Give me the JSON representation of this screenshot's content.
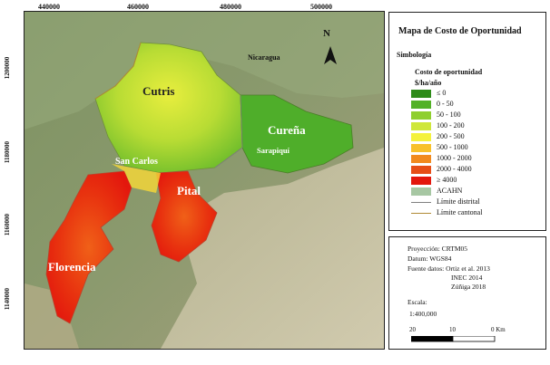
{
  "map": {
    "x_ticks": [
      "440000",
      "460000",
      "480000",
      "500000"
    ],
    "y_ticks": [
      "1200000",
      "1180000",
      "1160000",
      "1140000"
    ],
    "north_label": "N",
    "places": {
      "nicaragua": "Nicaragua",
      "cutris": "Cutris",
      "curena": "Cureña",
      "sarapiqui": "Sarapiquí",
      "san_carlos": "San Carlos",
      "pital": "Pital",
      "florencia": "Florencia"
    }
  },
  "legend": {
    "title": "Mapa de Costo de Oportunidad",
    "subtitle": "Simbología",
    "variable": "Costo de oportunidad",
    "units": "$/ha/año",
    "classes": [
      {
        "label": "≤ 0",
        "color": "#2e8b1a"
      },
      {
        "label": "0 - 50",
        "color": "#52b126"
      },
      {
        "label": "50 - 100",
        "color": "#8fcf2e"
      },
      {
        "label": "100 - 200",
        "color": "#cfe73a"
      },
      {
        "label": "200 - 500",
        "color": "#f4f23c"
      },
      {
        "label": "500 - 1000",
        "color": "#f8c12a"
      },
      {
        "label": "1000 - 2000",
        "color": "#f18a1e"
      },
      {
        "label": "2000 - 4000",
        "color": "#e64e17"
      },
      {
        "label": "≥ 4000",
        "color": "#e3170d"
      },
      {
        "label": "ACAHN",
        "color": "#a7c7a3"
      }
    ],
    "lines": [
      {
        "label": "Límite distrital",
        "color": "#7f7f7f"
      },
      {
        "label": "Límite cantonal",
        "color": "#b08a34"
      }
    ]
  },
  "info": {
    "projection": "Proyección: CRTM05",
    "datum": "Datum: WGS84",
    "sources_1": "Fuente datos: Ortiz et al. 2013",
    "sources_2": "INEC 2014",
    "sources_3": "Zúñiga 2018",
    "scale_label": "Escala:",
    "scale_value": "1:400,000",
    "scale_ticks": [
      "20",
      "10",
      "0 Km"
    ]
  }
}
